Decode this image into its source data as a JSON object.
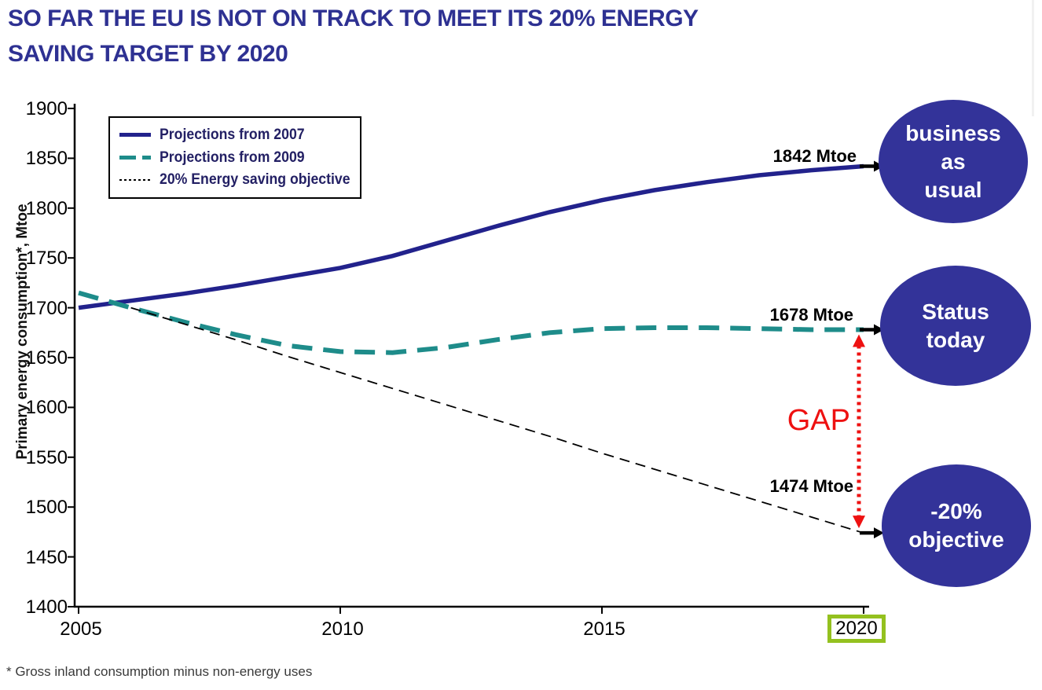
{
  "title": {
    "line1": "SO FAR THE EU IS NOT ON TRACK TO MEET ITS 20% ENERGY",
    "line2": "SAVING TARGET BY 2020"
  },
  "footnote": "* Gross inland consumption minus non-energy uses",
  "colors": {
    "title": "#2E3192",
    "proj2007_line": "#22228C",
    "proj2009_line": "#1E8C8A",
    "objective_line": "#000000",
    "gap_red": "#EE1111",
    "ellipse_fill": "#333399",
    "highlight_box_green": "#94C11F",
    "axis": "#000000"
  },
  "legend": {
    "items": [
      {
        "label": "Projections from 2007",
        "style": "solid",
        "color": "#22228C"
      },
      {
        "label": "Projections from 2009",
        "style": "dashed",
        "color": "#1E8C8A"
      },
      {
        "label": "20% Energy saving objective",
        "style": "dotted",
        "color": "#000000"
      }
    ]
  },
  "annotations": {
    "bau_value": "1842 Mtoe",
    "status_value": "1678 Mtoe",
    "objective_value": "1474 Mtoe",
    "gap_label": "GAP"
  },
  "ellipses": [
    {
      "text": "business\nas\nusual"
    },
    {
      "text": "Status\ntoday"
    },
    {
      "text": "-20%\nobjective"
    }
  ],
  "chart_data": {
    "type": "line",
    "title": "SO FAR THE EU IS NOT ON TRACK TO MEET ITS 20% ENERGY SAVING TARGET BY 2020",
    "xlabel": "",
    "ylabel": "Primary energy consumption*, Mtoe",
    "xlim": [
      2005,
      2020
    ],
    "ylim": [
      1400,
      1900
    ],
    "grid": false,
    "legend_position": "top-left",
    "x_ticks": [
      2005,
      2010,
      2015,
      2020
    ],
    "highlighted_x_tick": 2020,
    "y_ticks": [
      1400,
      1450,
      1500,
      1550,
      1600,
      1650,
      1700,
      1750,
      1800,
      1850,
      1900
    ],
    "x": [
      2005,
      2006,
      2007,
      2008,
      2009,
      2010,
      2011,
      2012,
      2013,
      2014,
      2015,
      2016,
      2017,
      2018,
      2019,
      2020
    ],
    "series": [
      {
        "name": "Projections from 2007",
        "style": "solid",
        "color": "#22228C",
        "end_label": "1842 Mtoe",
        "values": [
          1700,
          1707,
          1714,
          1722,
          1731,
          1740,
          1752,
          1767,
          1782,
          1796,
          1808,
          1818,
          1826,
          1833,
          1838,
          1842
        ]
      },
      {
        "name": "Projections from 2009",
        "style": "dashed",
        "color": "#1E8C8A",
        "end_label": "1678 Mtoe",
        "values": [
          1715,
          1700,
          1686,
          1673,
          1662,
          1656,
          1655,
          1660,
          1668,
          1675,
          1679,
          1680,
          1680,
          1679,
          1678,
          1678
        ]
      },
      {
        "name": "20% Energy saving objective",
        "style": "dotted",
        "color": "#000000",
        "end_label": "1474 Mtoe",
        "values": [
          null,
          1700,
          1684,
          1668,
          1651,
          1635,
          1619,
          1603,
          1587,
          1571,
          1554,
          1538,
          1522,
          1506,
          1490,
          1474
        ]
      }
    ],
    "gap_annotation": {
      "label": "GAP",
      "from_value": 1678,
      "to_value": 1474,
      "at_x": 2020
    }
  }
}
